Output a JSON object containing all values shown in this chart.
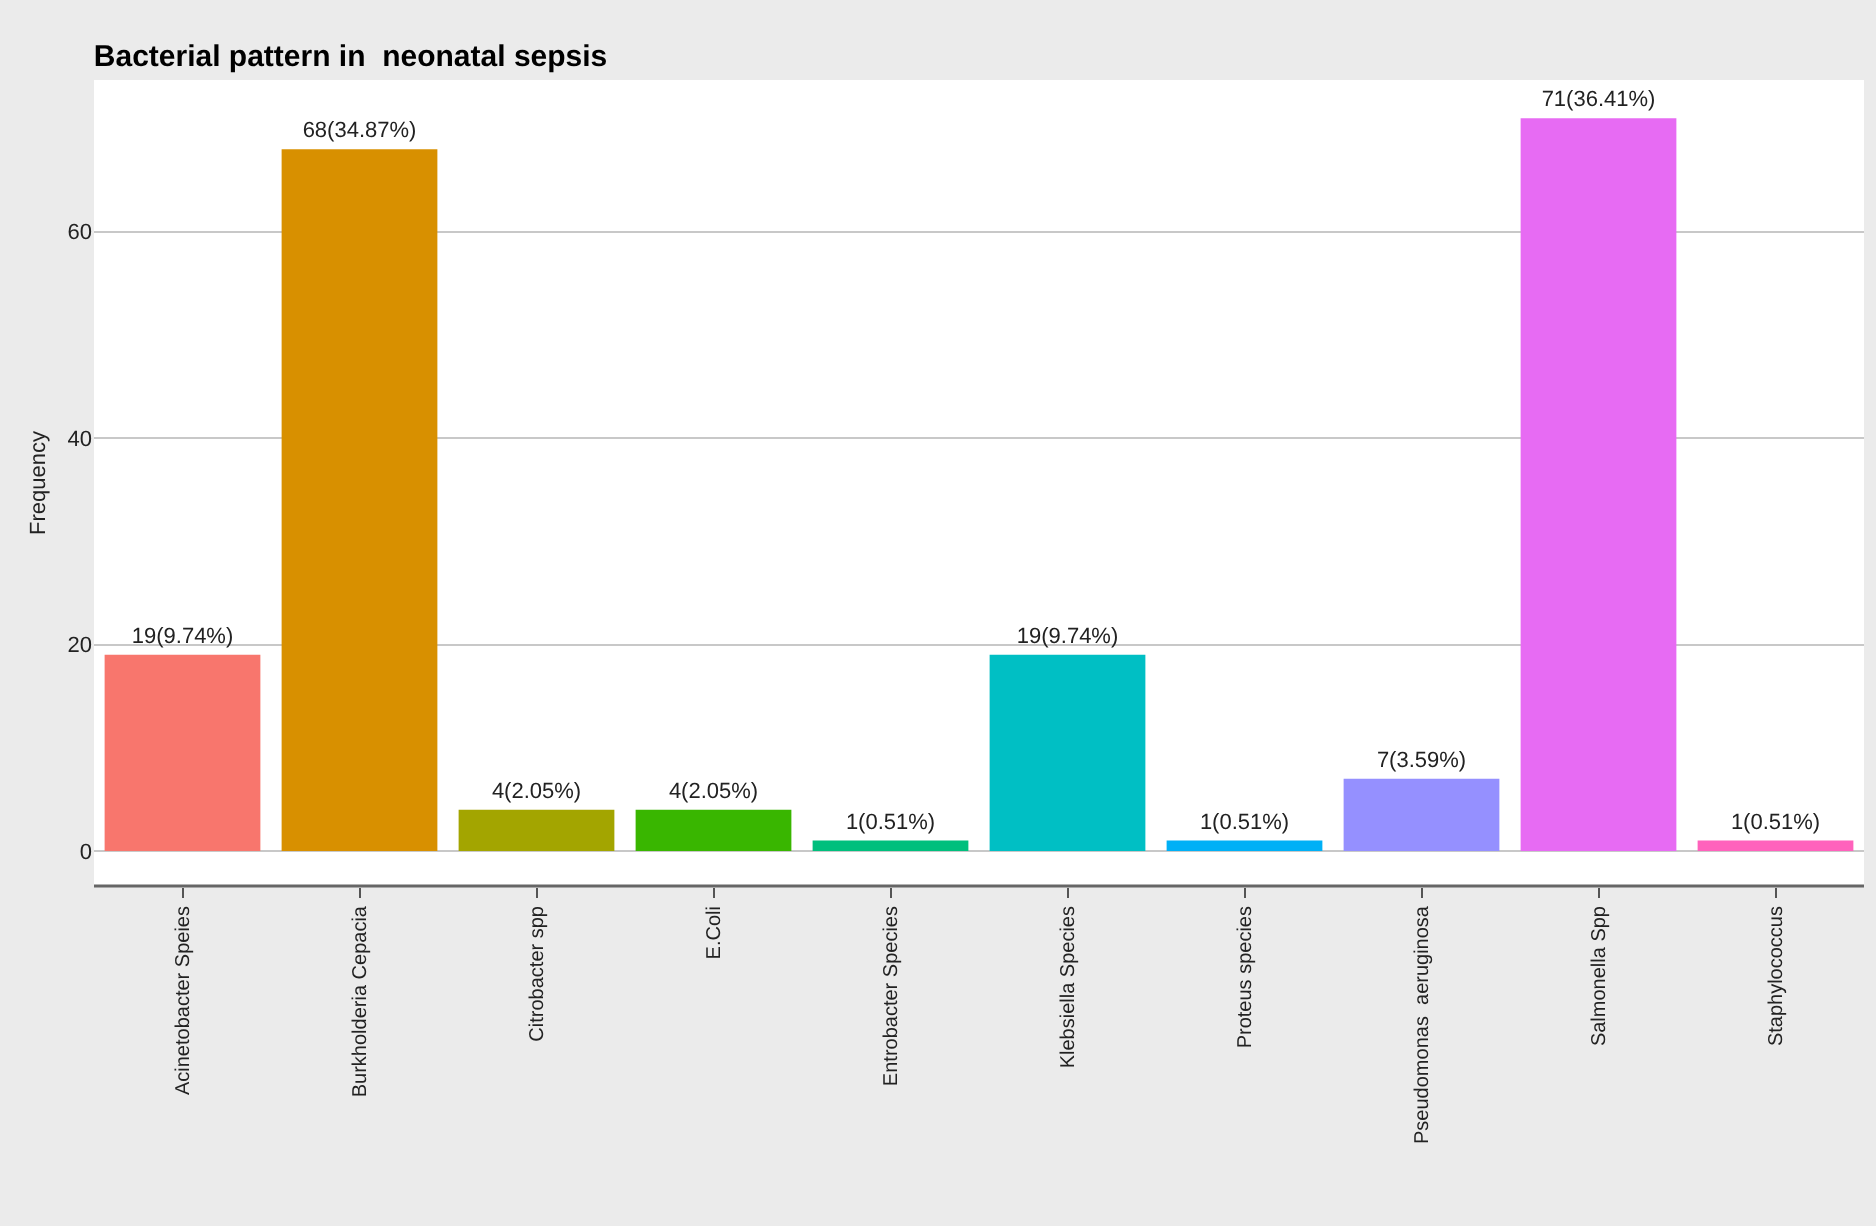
{
  "chart_data": {
    "type": "bar",
    "title": "Bacterial pattern in  neonatal sepsis",
    "ylabel": "Frequency",
    "categories": [
      "Acinetobacter Speies",
      "Burkholderia Cepacia",
      "Citrobacter spp",
      "E.Coli",
      "Entrobacter Species",
      "Klebsiella Species",
      "Proteus species",
      "Pseudomonas  aeruginosa",
      "Salmonella Spp",
      "Staphylococcus"
    ],
    "values": [
      19,
      68,
      4,
      4,
      1,
      19,
      1,
      7,
      71,
      1
    ],
    "value_labels": [
      "19(9.74%)",
      "68(34.87%)",
      "4(2.05%)",
      "4(2.05%)",
      "1(0.51%)",
      "19(9.74%)",
      "1(0.51%)",
      "7(3.59%)",
      "71(36.41%)",
      "1(0.51%)"
    ],
    "colors": [
      "#f8766d",
      "#d89000",
      "#a3a500",
      "#39b600",
      "#00bf7d",
      "#00bfc4",
      "#00b0f6",
      "#9590ff",
      "#e76bf3",
      "#ff62bc"
    ],
    "ylim": [
      -3.4,
      74.7
    ],
    "yticks": [
      0,
      20,
      40,
      60
    ],
    "grid": "y"
  }
}
